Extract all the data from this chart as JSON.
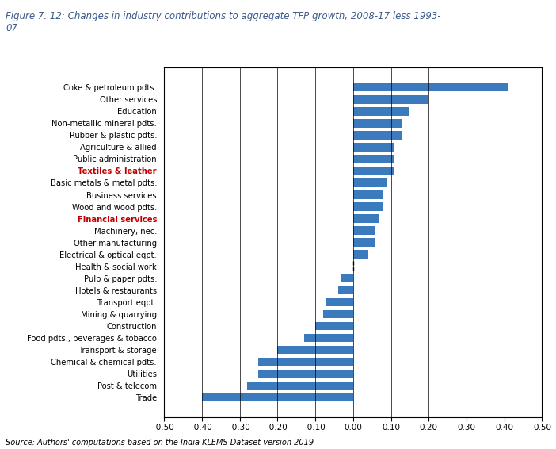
{
  "title": "Figure 7. 12: Changes in industry contributions to aggregate TFP growth, 2008-17 less 1993-\n07",
  "source": "Source: Authors' computations based on the India KLEMS Dataset version 2019",
  "categories": [
    "Coke & petroleum pdts.",
    "Other services",
    "Education",
    "Non-metallic mineral pdts.",
    "Rubber & plastic pdts.",
    "Agriculture & allied",
    "Public administration",
    "Textiles & leather",
    "Basic metals & metal pdts.",
    "Business services",
    "Wood and wood pdts.",
    "Financial services",
    "Machinery, nec.",
    "Other manufacturing",
    "Electrical & optical eqpt.",
    "Health & social work",
    "Pulp & paper pdts.",
    "Hotels & restaurants",
    "Transport eqpt.",
    "Mining & quarrying",
    "Construction",
    "Food pdts., beverages & tobacco",
    "Transport & storage",
    "Chemical & chemical pdts.",
    "Utilities",
    "Post & telecom",
    "Trade"
  ],
  "values": [
    0.41,
    0.2,
    0.15,
    0.13,
    0.13,
    0.11,
    0.11,
    0.11,
    0.09,
    0.08,
    0.08,
    0.07,
    0.06,
    0.06,
    0.04,
    0.0,
    -0.03,
    -0.04,
    -0.07,
    -0.08,
    -0.1,
    -0.13,
    -0.2,
    -0.25,
    -0.25,
    -0.28,
    -0.4
  ],
  "bar_color": "#3C7ABE",
  "xlim": [
    -0.5,
    0.5
  ],
  "xticks": [
    -0.5,
    -0.4,
    -0.3,
    -0.2,
    -0.1,
    0.0,
    0.1,
    0.2,
    0.3,
    0.4,
    0.5
  ],
  "xtick_labels": [
    "-0.50",
    "-0.40",
    "-0.30",
    "-0.20",
    "-0.10",
    "0.00",
    "0.10",
    "0.20",
    "0.30",
    "0.40",
    "0.50"
  ],
  "figsize": [
    7.02,
    5.66
  ],
  "dpi": 100,
  "title_color": "#3C5A8C",
  "label_colors": {
    "Textiles & leather": "#C00000",
    "Financial services": "#C00000"
  }
}
